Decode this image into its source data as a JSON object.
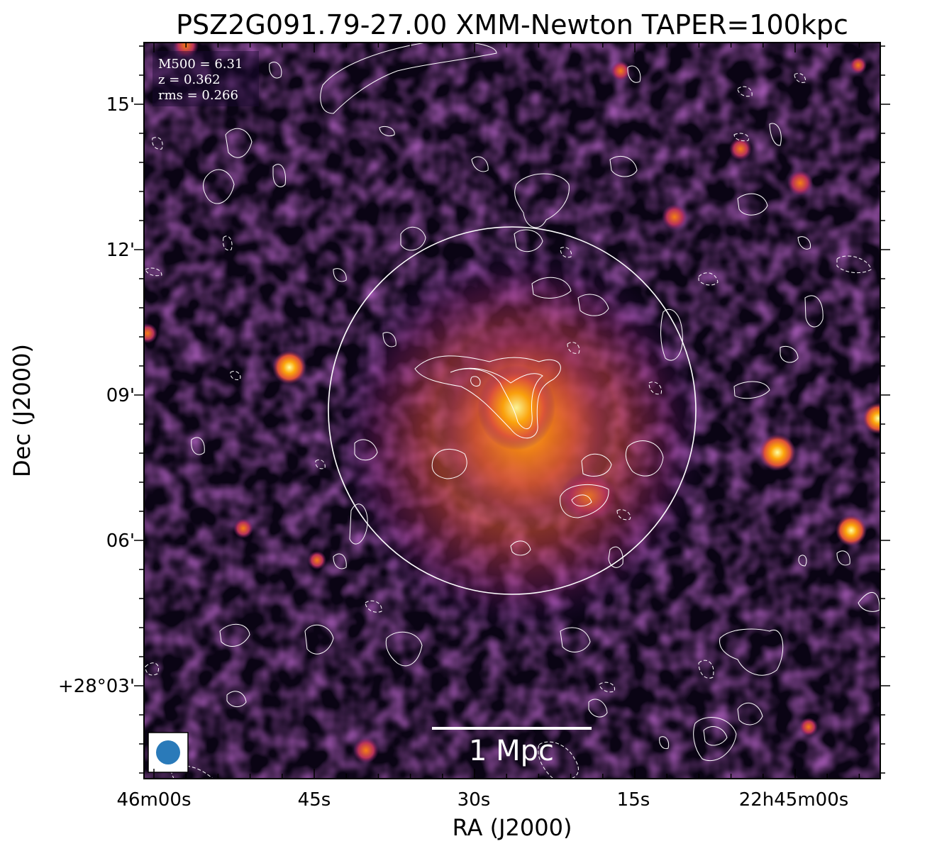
{
  "figure": {
    "title": "PSZ2G091.79-27.00 XMM-Newton TAPER=100kpc",
    "xlabel": "RA (J2000)",
    "ylabel": "Dec (J2000)",
    "xticks": [
      "46m00s",
      "45s",
      "30s",
      "15s",
      "22h45m00s"
    ],
    "yticks": [
      "15'",
      "12'",
      "09'",
      "06'",
      "+28°03'"
    ]
  },
  "info": {
    "m500": "M500 = 6.31",
    "z": "z = 0.362",
    "rms": "rms = 0.266"
  },
  "scalebar": {
    "label": "1 Mpc"
  },
  "colors": {
    "background": "#0a0414",
    "contour": "#ffffff",
    "beam": "#2a7ab9",
    "core": "#fdb42f"
  }
}
